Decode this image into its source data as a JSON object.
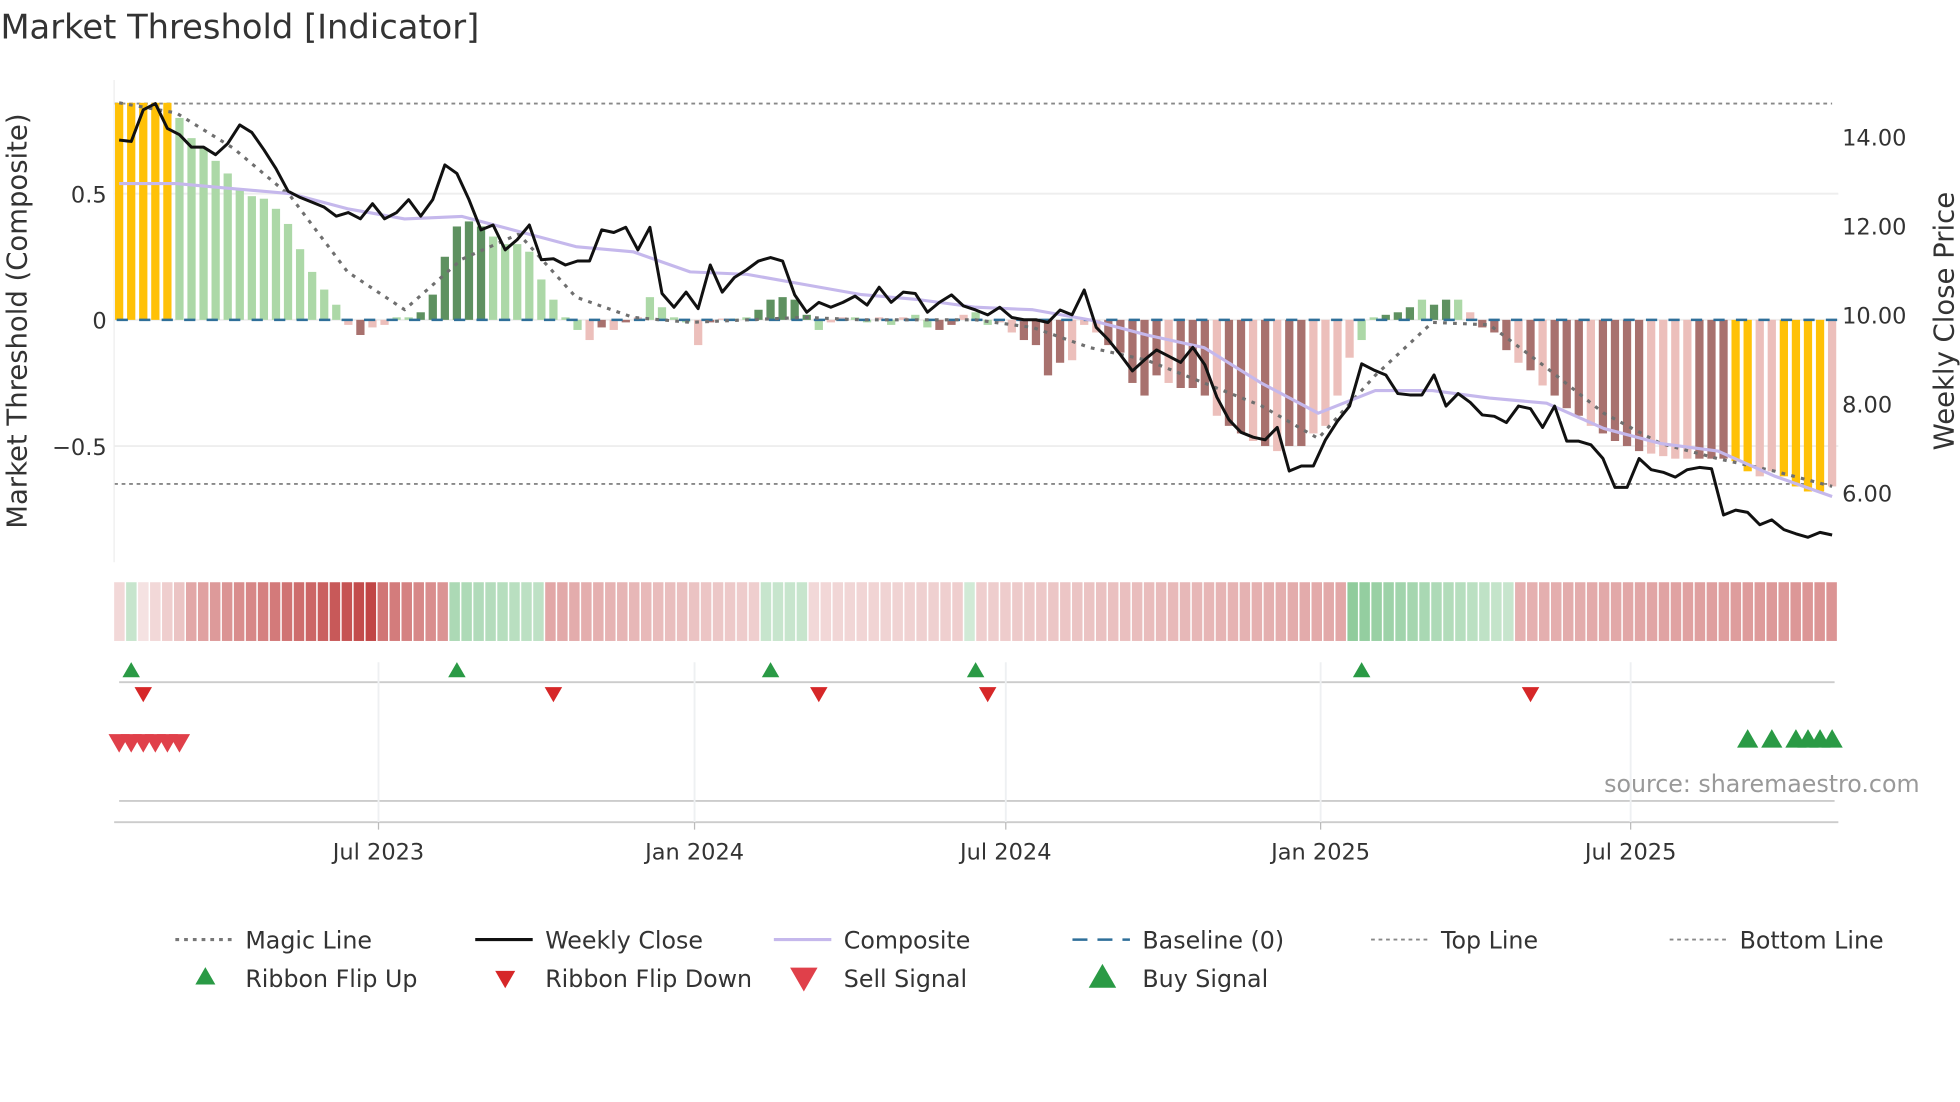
{
  "chart_data": {
    "type": "bar",
    "title": "Market Threshold [Indicator]",
    "ylabel": "Market Threshold (Composite)",
    "ylabel_right": "Weekly Close Price",
    "ylim": [
      -0.96,
      0.95
    ],
    "ylim_right": [
      4.44,
      15.28
    ],
    "yticks": [
      {
        "v": 0.5,
        "label": "0.5"
      },
      {
        "v": 0,
        "label": "0"
      },
      {
        "v": -0.5,
        "label": "−0.5"
      }
    ],
    "yticks_right": [
      {
        "v": 14,
        "label": "14.00"
      },
      {
        "v": 12,
        "label": "12.00"
      },
      {
        "v": 10,
        "label": "10.00"
      },
      {
        "v": 8,
        "label": "8.00"
      },
      {
        "v": 6,
        "label": "6.00"
      }
    ],
    "xticks": [
      {
        "week": 21.5,
        "label": "Jul 2023"
      },
      {
        "week": 47.7,
        "label": "Jan 2024"
      },
      {
        "week": 73.5,
        "label": "Jul 2024"
      },
      {
        "week": 99.6,
        "label": "Jan 2025"
      },
      {
        "week": 125.3,
        "label": "Jul 2025"
      }
    ],
    "top_line": 0.857,
    "bottom_line": -0.65,
    "baseline": 0,
    "state_colors": {
      "y": "#FFC107",
      "g": "#acd8a7",
      "G": "#5e9160",
      "r": "#ecbfbb",
      "R": "#a8716e"
    },
    "composite": [
      0.86,
      0.86,
      0.86,
      0.86,
      0.86,
      0.8,
      0.72,
      0.68,
      0.63,
      0.58,
      0.52,
      0.49,
      0.48,
      0.44,
      0.38,
      0.28,
      0.19,
      0.12,
      0.06,
      -0.02,
      -0.06,
      -0.03,
      -0.02,
      0.01,
      0.01,
      0.03,
      0.1,
      0.25,
      0.37,
      0.39,
      0.37,
      0.33,
      0.3,
      0.3,
      0.27,
      0.16,
      0.08,
      0.01,
      -0.04,
      -0.08,
      -0.03,
      -0.04,
      -0.01,
      0.01,
      0.09,
      0.05,
      0.01,
      -0.01,
      -0.1,
      -0.01,
      0.005,
      0.005,
      0.01,
      0.04,
      0.08,
      0.09,
      0.08,
      0.02,
      -0.04,
      -0.01,
      0.01,
      0.01,
      -0.01,
      0.01,
      -0.02,
      0.01,
      0.02,
      -0.03,
      -0.04,
      -0.02,
      0.02,
      0.03,
      -0.02,
      -0.01,
      -0.05,
      -0.08,
      -0.1,
      -0.22,
      -0.17,
      -0.16,
      -0.02,
      -0.05,
      -0.1,
      -0.13,
      -0.25,
      -0.3,
      -0.22,
      -0.25,
      -0.27,
      -0.27,
      -0.3,
      -0.38,
      -0.42,
      -0.45,
      -0.48,
      -0.5,
      -0.52,
      -0.5,
      -0.5,
      -0.45,
      -0.42,
      -0.3,
      -0.15,
      -0.08,
      0.01,
      0.02,
      0.03,
      0.05,
      0.08,
      0.06,
      0.08,
      0.08,
      0.03,
      -0.03,
      -0.05,
      -0.12,
      -0.17,
      -0.2,
      -0.26,
      -0.3,
      -0.35,
      -0.38,
      -0.42,
      -0.45,
      -0.48,
      -0.5,
      -0.52,
      -0.53,
      -0.54,
      -0.55,
      -0.55,
      -0.55,
      -0.55,
      -0.55,
      -0.56,
      -0.6,
      -0.62,
      -0.6,
      -0.62,
      -0.66,
      -0.68,
      -0.68,
      -0.66
    ],
    "states": "yyyyygggggggggggggg rRrrggGGGGGGggggggggrRrRrggggrRrggGGGGGgrrggrgrggRRrggrrRRRRrrrRRRRRrRRRrRRrRrRRrrrrggGGGgGGgrRRRrRrRRRrRRRRrrrrRRRyyrryyyy",
    "weekly_close": [
      13.93,
      13.9,
      14.61,
      14.75,
      14.19,
      14.05,
      13.77,
      13.77,
      13.6,
      13.85,
      14.27,
      14.1,
      13.71,
      13.29,
      12.78,
      12.64,
      12.53,
      12.42,
      12.22,
      12.3,
      12.16,
      12.5,
      12.16,
      12.3,
      12.59,
      12.22,
      12.59,
      13.37,
      13.18,
      12.59,
      11.91,
      12.02,
      11.46,
      11.69,
      12.02,
      11.24,
      11.26,
      11.12,
      11.21,
      11.21,
      11.91,
      11.85,
      11.97,
      11.46,
      11.97,
      10.48,
      10.17,
      10.51,
      10.14,
      11.12,
      10.51,
      10.84,
      11.01,
      11.21,
      11.29,
      11.21,
      10.45,
      10.06,
      10.28,
      10.17,
      10.28,
      10.42,
      10.22,
      10.62,
      10.28,
      10.51,
      10.48,
      10.06,
      10.28,
      10.45,
      10.2,
      10.11,
      10.0,
      10.17,
      9.94,
      9.89,
      9.89,
      9.83,
      10.11,
      10.0,
      10.56,
      9.72,
      9.44,
      9.1,
      8.74,
      8.99,
      9.21,
      9.07,
      8.93,
      9.27,
      8.88,
      8.15,
      7.64,
      7.36,
      7.25,
      7.19,
      7.47,
      6.49,
      6.6,
      6.6,
      7.19,
      7.61,
      7.95,
      8.9,
      8.76,
      8.65,
      8.23,
      8.2,
      8.2,
      8.65,
      7.95,
      8.23,
      8.03,
      7.75,
      7.72,
      7.58,
      7.95,
      7.89,
      7.47,
      7.95,
      7.16,
      7.16,
      7.08,
      6.77,
      6.12,
      6.12,
      6.77,
      6.52,
      6.46,
      6.35,
      6.52,
      6.57,
      6.54,
      5.5,
      5.61,
      5.56,
      5.28,
      5.39,
      5.17,
      5.08,
      5.0,
      5.11,
      5.05
    ],
    "composite_line": [
      0.54,
      0.54,
      0.52,
      0.5,
      0.44,
      0.4,
      0.41,
      0.35,
      0.29,
      0.27,
      0.19,
      0.18,
      0.14,
      0.1,
      0.08,
      0.05,
      0.04,
      0.0,
      -0.06,
      -0.11,
      -0.25,
      -0.37,
      -0.28,
      -0.28,
      -0.31,
      -0.33,
      -0.43,
      -0.49,
      -0.52,
      -0.62,
      -0.7
    ],
    "magic_line": [
      0.86,
      0.82,
      0.68,
      0.49,
      0.19,
      0.04,
      0.24,
      0.34,
      0.09,
      0.01,
      -0.01,
      0.0,
      0.01,
      0.0,
      0.0,
      0.0,
      -0.03,
      -0.11,
      -0.16,
      -0.25,
      -0.34,
      -0.47,
      -0.22,
      -0.01,
      -0.02,
      -0.19,
      -0.37,
      -0.49,
      -0.55,
      -0.6,
      -0.66
    ],
    "ribbon_segments": [
      {
        "dir": "down",
        "n": 1,
        "from": 0.2,
        "to": 0.2
      },
      {
        "dir": "up",
        "n": 1,
        "from": 0.3,
        "to": 0.3
      },
      {
        "dir": "down",
        "n": 4,
        "from": 0.15,
        "to": 0.3
      },
      {
        "dir": "down",
        "n": 16,
        "from": 0.45,
        "to": 0.95
      },
      {
        "dir": "down",
        "n": 6,
        "from": 0.7,
        "to": 0.55
      },
      {
        "dir": "up",
        "n": 8,
        "from": 0.45,
        "to": 0.35
      },
      {
        "dir": "down",
        "n": 18,
        "from": 0.45,
        "to": 0.25
      },
      {
        "dir": "up",
        "n": 4,
        "from": 0.3,
        "to": 0.3
      },
      {
        "dir": "down",
        "n": 13,
        "from": 0.2,
        "to": 0.25
      },
      {
        "dir": "up",
        "n": 1,
        "from": 0.25,
        "to": 0.25
      },
      {
        "dir": "down",
        "n": 31,
        "from": 0.25,
        "to": 0.45
      },
      {
        "dir": "up",
        "n": 14,
        "from": 0.6,
        "to": 0.3
      },
      {
        "dir": "down",
        "n": 27,
        "from": 0.4,
        "to": 0.55
      }
    ],
    "ribbon_flip_up": [
      1,
      28,
      54,
      71,
      103
    ],
    "ribbon_flip_down": [
      2,
      36,
      58,
      72,
      117
    ],
    "sell_signal": [
      0,
      1,
      2,
      3,
      4,
      5
    ],
    "buy_signal": [
      135,
      137,
      139,
      140,
      141,
      142
    ],
    "legend": [
      {
        "label": "Magic Line",
        "kind": "dotted",
        "color": "#777777"
      },
      {
        "label": "Weekly Close",
        "kind": "solid",
        "color": "#111111"
      },
      {
        "label": "Composite",
        "kind": "solid",
        "color": "#c5b8ec"
      },
      {
        "label": "Baseline (0)",
        "kind": "dashed",
        "color": "#2f6f99"
      },
      {
        "label": "Top Line",
        "kind": "dotted-thin",
        "color": "#888888"
      },
      {
        "label": "Bottom Line",
        "kind": "dotted-thin",
        "color": "#888888"
      },
      {
        "label": "Ribbon Flip Up",
        "kind": "tri-up",
        "color": "#2a9a45"
      },
      {
        "label": "Ribbon Flip Down",
        "kind": "tri-down",
        "color": "#d62728"
      },
      {
        "label": "Sell Signal",
        "kind": "tri-down-big",
        "color": "#e0404a"
      },
      {
        "label": "Buy Signal",
        "kind": "tri-up-big",
        "color": "#2a9a45"
      }
    ],
    "source": "source: sharemaestro.com"
  }
}
